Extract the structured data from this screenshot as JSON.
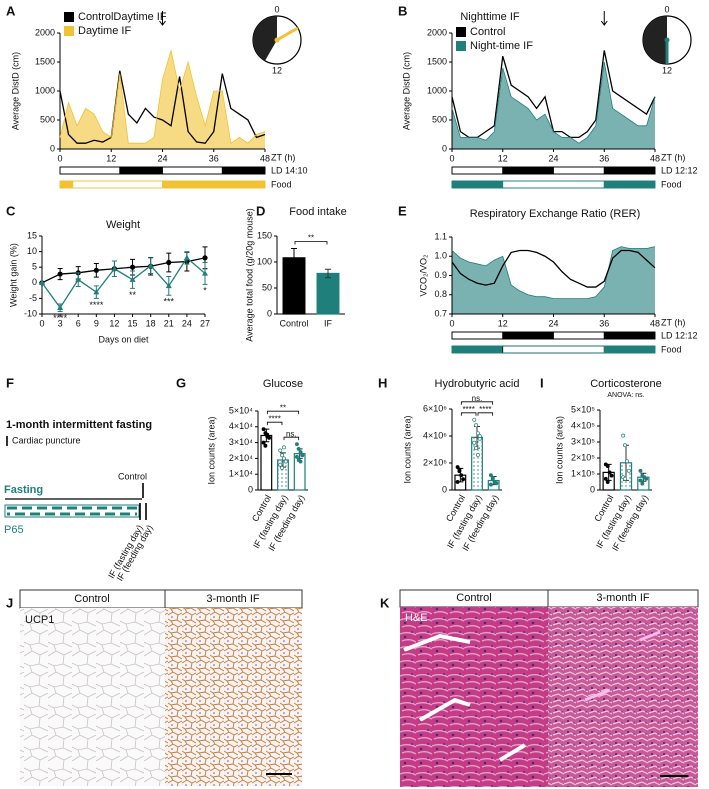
{
  "panel_labels": [
    "A",
    "B",
    "C",
    "D",
    "E",
    "F",
    "G",
    "H",
    "I",
    "J",
    "K"
  ],
  "chart_data": [
    {
      "type": "line",
      "title": "Daytime IF",
      "xlabel": "ZT (h)",
      "ylabel": "Average DistD (cm)",
      "x": [
        0,
        2,
        4,
        6,
        8,
        10,
        12,
        14,
        16,
        18,
        20,
        22,
        24,
        26,
        28,
        30,
        32,
        34,
        36,
        38,
        40,
        42,
        44,
        46,
        48
      ],
      "series": [
        {
          "name": "Control",
          "color": "#000000",
          "values": [
            1000,
            250,
            100,
            100,
            150,
            120,
            200,
            1350,
            600,
            450,
            700,
            550,
            500,
            400,
            1250,
            300,
            120,
            100,
            300,
            1300,
            700,
            600,
            500,
            200,
            250
          ]
        },
        {
          "name": "Daytime IF",
          "color": "#f1c232",
          "fill": true,
          "values": [
            200,
            800,
            400,
            700,
            600,
            300,
            200,
            1300,
            100,
            100,
            100,
            200,
            1200,
            1700,
            1000,
            1500,
            900,
            400,
            1000,
            1000,
            100,
            200,
            100,
            250,
            300
          ]
        }
      ],
      "xlim": [
        0,
        48
      ],
      "xticks": [
        0,
        12,
        24,
        36,
        48
      ],
      "ylim": [
        0,
        2000
      ],
      "yticks": [
        0,
        500,
        1000,
        1500,
        2000
      ],
      "legend": "upper left",
      "arrow_at": 24,
      "clock": {
        "labels": [
          "0",
          "12"
        ],
        "dark": [
          14,
          24
        ],
        "hand": 4
      },
      "schedules": [
        {
          "label": "LD 14:10",
          "segments": [
            {
              "start": 0,
              "end": 14,
              "color": "#ffffff"
            },
            {
              "start": 14,
              "end": 24,
              "color": "#000000"
            },
            {
              "start": 24,
              "end": 38,
              "color": "#ffffff"
            },
            {
              "start": 38,
              "end": 48,
              "color": "#000000"
            }
          ]
        },
        {
          "label": "Food",
          "segments": [
            {
              "start": 0,
              "end": 3,
              "color": "#f1c232"
            },
            {
              "start": 3,
              "end": 24,
              "color": "#ffffff"
            },
            {
              "start": 24,
              "end": 48,
              "color": "#f1c232"
            }
          ]
        }
      ]
    },
    {
      "type": "line",
      "title": "Nighttime IF",
      "xlabel": "ZT (h)",
      "ylabel": "Average DistD (cm)",
      "x": [
        0,
        2,
        4,
        6,
        8,
        10,
        12,
        14,
        16,
        18,
        20,
        22,
        24,
        26,
        28,
        30,
        32,
        34,
        36,
        38,
        40,
        42,
        44,
        46,
        48
      ],
      "series": [
        {
          "name": "Control",
          "color": "#000000",
          "values": [
            900,
            300,
            200,
            200,
            300,
            400,
            1600,
            1100,
            1000,
            900,
            700,
            900,
            300,
            300,
            200,
            200,
            300,
            500,
            1700,
            1000,
            900,
            800,
            700,
            600,
            900
          ]
        },
        {
          "name": "Night-time IF",
          "color": "#1f7f7b",
          "fill": true,
          "values": [
            700,
            200,
            200,
            200,
            150,
            300,
            1400,
            900,
            800,
            700,
            500,
            600,
            300,
            200,
            200,
            100,
            200,
            400,
            1500,
            700,
            600,
            500,
            400,
            400,
            900
          ]
        }
      ],
      "xlim": [
        0,
        48
      ],
      "xticks": [
        0,
        12,
        24,
        36,
        48
      ],
      "ylim": [
        0,
        2000
      ],
      "yticks": [
        0,
        500,
        1000,
        1500,
        2000
      ],
      "legend": "upper left",
      "arrow_at": 36,
      "clock": {
        "labels": [
          "0",
          "12"
        ],
        "dark": [
          12,
          24
        ],
        "hand": 12
      },
      "schedules": [
        {
          "label": "LD 12:12",
          "segments": [
            {
              "start": 0,
              "end": 12,
              "color": "#ffffff"
            },
            {
              "start": 12,
              "end": 24,
              "color": "#000000"
            },
            {
              "start": 24,
              "end": 36,
              "color": "#ffffff"
            },
            {
              "start": 36,
              "end": 48,
              "color": "#000000"
            }
          ]
        },
        {
          "label": "Food",
          "segments": [
            {
              "start": 0,
              "end": 12,
              "color": "#1f7f7b"
            },
            {
              "start": 12,
              "end": 36,
              "color": "#ffffff"
            },
            {
              "start": 36,
              "end": 48,
              "color": "#1f7f7b"
            }
          ]
        }
      ]
    },
    {
      "type": "line",
      "title": "Weight",
      "xlabel": "Days on diet",
      "ylabel": "Weight gain (%)",
      "x": [
        0,
        3,
        6,
        9,
        12,
        15,
        18,
        21,
        24,
        27
      ],
      "series": [
        {
          "color": "#000000",
          "marker": "circle",
          "values": [
            0,
            2.8,
            3.2,
            4,
            4.5,
            5,
            5.3,
            6.5,
            6.8,
            8
          ],
          "errors": [
            0,
            1.8,
            2,
            2.2,
            2.5,
            2.5,
            2.8,
            3,
            3,
            3.5
          ]
        },
        {
          "color": "#1f7f7b",
          "marker": "triangle",
          "values": [
            0,
            -8,
            1,
            -3,
            4.5,
            1,
            5.5,
            -1,
            8,
            3
          ],
          "errors": [
            0,
            1.2,
            2.2,
            2,
            2.5,
            2.8,
            2.5,
            3,
            2,
            3.5
          ]
        }
      ],
      "xlim": [
        0,
        27
      ],
      "xticks": [
        0,
        3,
        6,
        9,
        12,
        15,
        18,
        21,
        24,
        27
      ],
      "ylim": [
        -10,
        15
      ],
      "yticks": [
        -10,
        -5,
        0,
        5,
        10,
        15
      ],
      "annotations": [
        {
          "x": 3,
          "text": "****"
        },
        {
          "x": 9,
          "text": "****"
        },
        {
          "x": 15,
          "text": "**"
        },
        {
          "x": 21,
          "text": "***"
        },
        {
          "x": 27,
          "text": "*"
        }
      ]
    },
    {
      "type": "bar",
      "title": "Food intake",
      "ylabel": "Average total food (g/20g mouse)",
      "categories": [
        "Control",
        "IF"
      ],
      "values": [
        108,
        78
      ],
      "errors": [
        18,
        8
      ],
      "fills": [
        "#000000",
        "#1f7f7b"
      ],
      "strokes": [
        "#000000",
        "#1f7f7b"
      ],
      "ylim": [
        0,
        150
      ],
      "yticks": [
        0,
        50,
        100,
        150
      ],
      "brackets": [
        {
          "pair": [
            0,
            1
          ],
          "text": "**"
        }
      ]
    },
    {
      "type": "line",
      "title": "Respiratory Exchange Ratio (RER)",
      "xlabel": "ZT (h)",
      "ylabel": "VCO₂/VO₂",
      "x": [
        0,
        2,
        4,
        6,
        8,
        10,
        12,
        14,
        16,
        18,
        20,
        22,
        24,
        26,
        28,
        30,
        32,
        34,
        36,
        38,
        40,
        42,
        44,
        46,
        48
      ],
      "series": [
        {
          "color": "#1f7f7b",
          "fill": true,
          "values": [
            1.03,
            0.99,
            0.97,
            0.96,
            0.95,
            0.98,
            1.0,
            0.85,
            0.82,
            0.8,
            0.79,
            0.79,
            0.78,
            0.78,
            0.78,
            0.78,
            0.78,
            0.79,
            0.84,
            1.03,
            1.05,
            1.04,
            1.04,
            1.04,
            1.05
          ]
        },
        {
          "color": "#000000",
          "values": [
            0.97,
            0.91,
            0.88,
            0.86,
            0.85,
            0.86,
            0.95,
            1.02,
            1.03,
            1.03,
            1.02,
            1.0,
            0.97,
            0.92,
            0.88,
            0.86,
            0.84,
            0.84,
            0.87,
            0.99,
            1.03,
            1.03,
            1.02,
            0.98,
            0.94
          ]
        }
      ],
      "xlim": [
        0,
        48
      ],
      "xticks": [
        0,
        12,
        24,
        36,
        48
      ],
      "ylim": [
        0.7,
        1.1
      ],
      "yticks": [
        0.7,
        0.8,
        0.9,
        {
          "value": 1,
          "label": "1.0"
        },
        1.1
      ],
      "schedules": [
        {
          "label": "LD 12:12",
          "segments": [
            {
              "start": 0,
              "end": 12,
              "color": "#ffffff"
            },
            {
              "start": 12,
              "end": 24,
              "color": "#000000"
            },
            {
              "start": 24,
              "end": 36,
              "color": "#ffffff"
            },
            {
              "start": 36,
              "end": 48,
              "color": "#000000"
            }
          ]
        },
        {
          "label": "Food",
          "segments": [
            {
              "start": 0,
              "end": 12,
              "color": "#1f7f7b"
            },
            {
              "start": 12,
              "end": 36,
              "color": "#ffffff"
            },
            {
              "start": 36,
              "end": 48,
              "color": "#1f7f7b"
            }
          ]
        }
      ]
    },
    {
      "type": "bar",
      "title": "Glucose",
      "ylabel": "Ion counts (area)",
      "categories": [
        "Control",
        "IF (fasting day)",
        "IF (feeding day)"
      ],
      "values": [
        34500,
        19000,
        23000
      ],
      "errors": [
        4000,
        4500,
        3000
      ],
      "fills": [
        "#ffffff",
        "dots",
        "#ffffff"
      ],
      "strokes": [
        "#000000",
        "#1f7f7b",
        "#1f7f7b"
      ],
      "points": [
        [
          38500,
          36000,
          34000,
          33000,
          30000,
          28000,
          35000
        ],
        [
          25000,
          22000,
          20000,
          18000,
          16000,
          14000,
          27000
        ],
        [
          29000,
          26000,
          24000,
          22000,
          21000,
          19000,
          18000
        ]
      ],
      "ylim": [
        0,
        50000
      ],
      "yticks": [
        0,
        {
          "value": 10000,
          "label": "1×10⁴"
        },
        {
          "value": 20000,
          "label": "2×10⁴"
        },
        {
          "value": 30000,
          "label": "3×10⁴"
        },
        {
          "value": 40000,
          "label": "4×10⁴"
        },
        {
          "value": 50000,
          "label": "5×10⁴"
        }
      ],
      "brackets": [
        {
          "pair": [
            1,
            2
          ],
          "text": "ns."
        },
        {
          "pair": [
            0,
            1
          ],
          "text": "****"
        },
        {
          "pair": [
            0,
            2
          ],
          "text": "**"
        }
      ]
    },
    {
      "type": "bar",
      "title": "Hydrobutyric acid",
      "ylabel": "Ion counts (area)",
      "categories": [
        "Control",
        "IF (fasting day)",
        "IF (feeding day)"
      ],
      "values": [
        1100000,
        3900000,
        700000
      ],
      "errors": [
        500000,
        800000,
        300000
      ],
      "fills": [
        "#ffffff",
        "dots",
        "#ffffff"
      ],
      "strokes": [
        "#000000",
        "#1f7f7b",
        "#1f7f7b"
      ],
      "points": [
        [
          1700000,
          1400000,
          1100000,
          800000,
          600000,
          1500000
        ],
        [
          5200000,
          4800000,
          4200000,
          3800000,
          3500000,
          3100000,
          2600000,
          4000000
        ],
        [
          1100000,
          800000,
          600000,
          500000,
          400000,
          900000
        ]
      ],
      "ylim": [
        0,
        6000000
      ],
      "yticks": [
        0,
        {
          "value": 2000000,
          "label": "2×10⁶"
        },
        {
          "value": 4000000,
          "label": "4×10⁶"
        },
        {
          "value": 6000000,
          "label": "6×10⁶"
        }
      ],
      "brackets": [
        {
          "pair": [
            0,
            1
          ],
          "text": "****"
        },
        {
          "pair": [
            1,
            2
          ],
          "text": "****"
        },
        {
          "pair": [
            0,
            2
          ],
          "text": "ns."
        }
      ]
    },
    {
      "type": "bar",
      "title": "Corticosterone",
      "subtitle": "ANOVA: ns.",
      "ylabel": "Ion counts (area)",
      "categories": [
        "Control",
        "IF (fasting day)",
        "IF (feeding day)"
      ],
      "values": [
        110000,
        170000,
        80000
      ],
      "errors": [
        50000,
        110000,
        25000
      ],
      "fills": [
        "#ffffff",
        "dots",
        "#ffffff"
      ],
      "strokes": [
        "#000000",
        "#1f7f7b",
        "#1f7f7b"
      ],
      "points": [
        [
          160000,
          150000,
          110000,
          90000,
          70000,
          50000
        ],
        [
          340000,
          280000,
          180000,
          120000,
          80000,
          70000
        ],
        [
          120000,
          90000,
          80000,
          70000,
          60000,
          40000
        ]
      ],
      "ylim": [
        0,
        500000
      ],
      "yticks": [
        0,
        {
          "value": 100000,
          "label": "1×10⁵"
        },
        {
          "value": 200000,
          "label": "2×10⁵"
        },
        {
          "value": 300000,
          "label": "3×10⁵"
        },
        {
          "value": 400000,
          "label": "4×10⁵"
        },
        {
          "value": 500000,
          "label": "5×10⁵"
        }
      ]
    }
  ],
  "panel_f": {
    "title": "1-month intermittent fasting",
    "legend": "Cardiac puncture",
    "control": "Control",
    "fasting": "Fasting",
    "strain": "P65",
    "groups": [
      "IF (fasting day)",
      "IF (feeding day)"
    ]
  },
  "panel_j": {
    "headers": [
      "Control",
      "3-month IF"
    ],
    "stain": "UCP1"
  },
  "panel_k": {
    "headers": [
      "Control",
      "3-month IF"
    ],
    "stain": "H&E"
  }
}
